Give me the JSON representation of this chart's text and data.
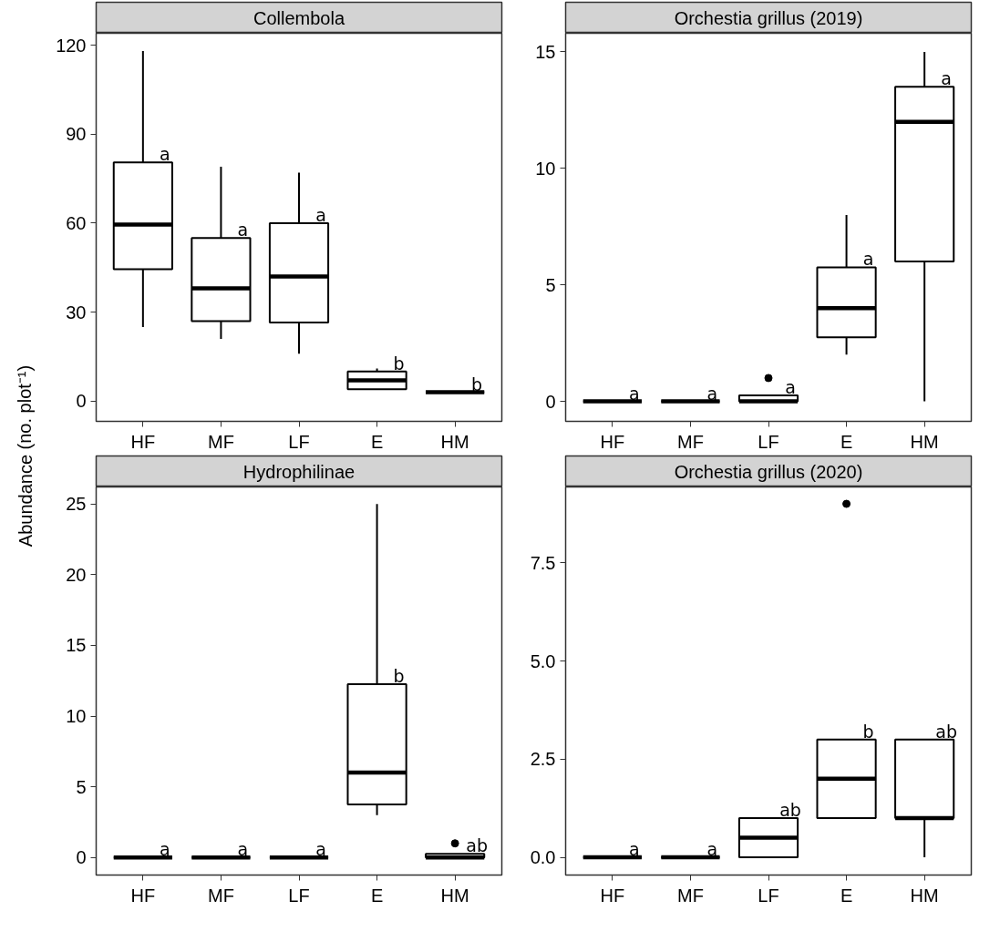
{
  "chart_data": [
    {
      "type": "box",
      "title": "Collembola",
      "ylabel": "Abundance (no. plot⁻¹)",
      "categories": [
        "HF",
        "MF",
        "LF",
        "E",
        "HM"
      ],
      "ylim": [
        -6.8,
        124
      ],
      "yticks": [
        0,
        30,
        60,
        90,
        120
      ],
      "grid": false,
      "boxes": [
        {
          "low": 25,
          "q1": 44.5,
          "median": 59.5,
          "q3": 80.5,
          "high": 118
        },
        {
          "low": 21,
          "q1": 27,
          "median": 38,
          "q3": 55,
          "high": 79
        },
        {
          "low": 16,
          "q1": 26.5,
          "median": 42,
          "q3": 60,
          "high": 77
        },
        {
          "low": 4,
          "q1": 4,
          "median": 7,
          "q3": 10,
          "high": 11
        },
        {
          "low": 3,
          "q1": 3,
          "median": 3,
          "q3": 3,
          "high": 3
        }
      ],
      "annotations": [
        "a",
        "a",
        "a",
        "b",
        "b"
      ]
    },
    {
      "type": "box",
      "title": "Orchestia grillus (2019)",
      "categories": [
        "HF",
        "MF",
        "LF",
        "E",
        "HM"
      ],
      "ylim": [
        -0.86,
        15.8
      ],
      "yticks": [
        0,
        5,
        10,
        15
      ],
      "grid": false,
      "boxes": [
        {
          "low": 0,
          "q1": 0,
          "median": 0,
          "q3": 0,
          "high": 0
        },
        {
          "low": 0,
          "q1": 0,
          "median": 0,
          "q3": 0,
          "high": 0
        },
        {
          "low": 0,
          "q1": 0,
          "median": 0,
          "q3": 0.25,
          "high": 0.25,
          "outliers": [
            1
          ]
        },
        {
          "low": 2,
          "q1": 2.75,
          "median": 4,
          "q3": 5.75,
          "high": 8
        },
        {
          "low": 0,
          "q1": 6,
          "median": 12,
          "q3": 13.5,
          "high": 15
        }
      ],
      "annotations": [
        "a",
        "a",
        "a",
        "a",
        "a"
      ]
    },
    {
      "type": "box",
      "title": "Hydrophilinae",
      "categories": [
        "HF",
        "MF",
        "LF",
        "E",
        "HM"
      ],
      "ylim": [
        -1.24,
        26.2
      ],
      "yticks": [
        0,
        5,
        10,
        15,
        20,
        25
      ],
      "grid": false,
      "boxes": [
        {
          "low": 0,
          "q1": 0,
          "median": 0,
          "q3": 0,
          "high": 0
        },
        {
          "low": 0,
          "q1": 0,
          "median": 0,
          "q3": 0,
          "high": 0
        },
        {
          "low": 0,
          "q1": 0,
          "median": 0,
          "q3": 0,
          "high": 0
        },
        {
          "low": 3,
          "q1": 3.75,
          "median": 6,
          "q3": 12.25,
          "high": 25
        },
        {
          "low": 0,
          "q1": 0,
          "median": 0,
          "q3": 0.25,
          "high": 0.25,
          "outliers": [
            1
          ]
        }
      ],
      "annotations": [
        "a",
        "a",
        "a",
        "b",
        "ab"
      ]
    },
    {
      "type": "box",
      "title": "Orchestia grillus (2020)",
      "categories": [
        "HF",
        "MF",
        "LF",
        "E",
        "HM"
      ],
      "ylim": [
        -0.45,
        9.43
      ],
      "yticks": [
        {
          "value": 0,
          "label": "0.0"
        },
        {
          "value": 2.5,
          "label": "2.5"
        },
        {
          "value": 5,
          "label": "5.0"
        },
        {
          "value": 7.5,
          "label": "7.5"
        }
      ],
      "grid": false,
      "boxes": [
        {
          "low": 0,
          "q1": 0,
          "median": 0,
          "q3": 0,
          "high": 0
        },
        {
          "low": 0,
          "q1": 0,
          "median": 0,
          "q3": 0,
          "high": 0
        },
        {
          "low": 0,
          "q1": 0,
          "median": 0.5,
          "q3": 1,
          "high": 1
        },
        {
          "low": 1,
          "q1": 1,
          "median": 2,
          "q3": 3,
          "high": 3,
          "outliers": [
            9
          ]
        },
        {
          "low": 0,
          "q1": 1,
          "median": 1,
          "q3": 3,
          "high": 3
        }
      ],
      "annotations": [
        "a",
        "a",
        "ab",
        "b",
        "ab"
      ]
    }
  ]
}
